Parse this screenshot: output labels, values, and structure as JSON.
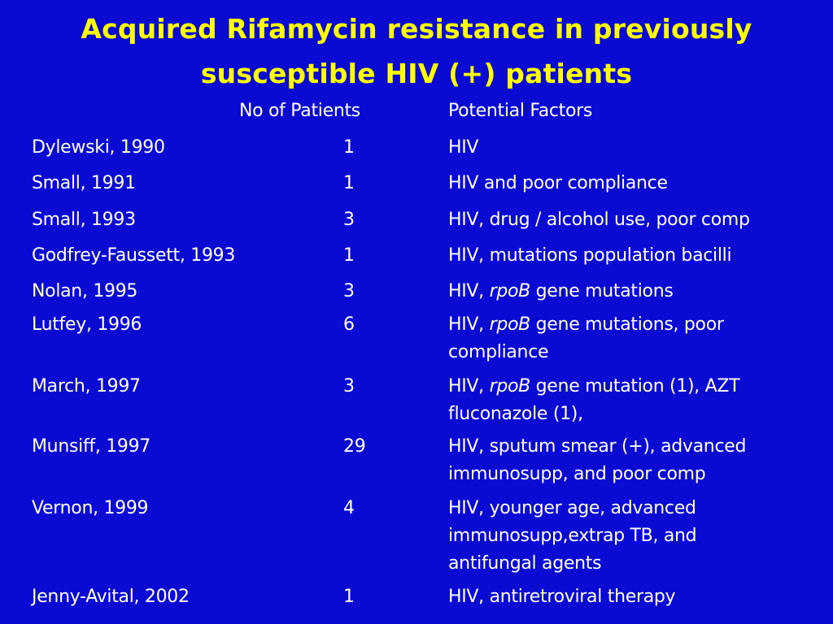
{
  "title": {
    "line1": "Acquired Rifamycin resistance in previously",
    "line2": "susceptible HIV (+) patients"
  },
  "table": {
    "headers": {
      "patients": "No of Patients",
      "factors": "Potential Factors"
    },
    "rows": [
      {
        "reference": "Dylewski, 1990",
        "patients": "1",
        "factors": [
          "HIV"
        ]
      },
      {
        "reference": "Small, 1991",
        "patients": "1",
        "factors": [
          "HIV and poor compliance"
        ]
      },
      {
        "reference": "Small, 1993",
        "patients": "3",
        "factors": [
          "HIV, drug / alcohol use, poor comp"
        ]
      },
      {
        "reference": "Godfrey-Faussett, 1993",
        "patients": "1",
        "factors": [
          "HIV, mutations population bacilli"
        ]
      },
      {
        "reference": "Nolan, 1995",
        "patients": "3",
        "factors": [
          "HIV, ",
          "rpoB",
          " gene mutations"
        ]
      },
      {
        "reference": "Lutfey, 1996",
        "patients": "6",
        "factors": [
          "HIV, ",
          "rpoB",
          " gene mutations, poor",
          "compliance"
        ]
      },
      {
        "reference": "March, 1997",
        "patients": "3",
        "factors": [
          "HIV, ",
          "rpoB",
          " gene mutation (1), AZT",
          "fluconazole (1),"
        ]
      },
      {
        "reference": "Munsiff, 1997",
        "patients": "29",
        "factors": [
          "HIV, sputum smear (+), advanced",
          "immunosupp, and poor comp"
        ]
      },
      {
        "reference": "Vernon, 1999",
        "patients": "4",
        "factors": [
          "HIV, younger age, advanced",
          "immunosupp,extrap TB, and",
          "antifungal agents"
        ]
      },
      {
        "reference": "Jenny-Avital, 2002",
        "patients": "1",
        "factors": [
          "HIV, antiretroviral therapy"
        ]
      }
    ]
  }
}
